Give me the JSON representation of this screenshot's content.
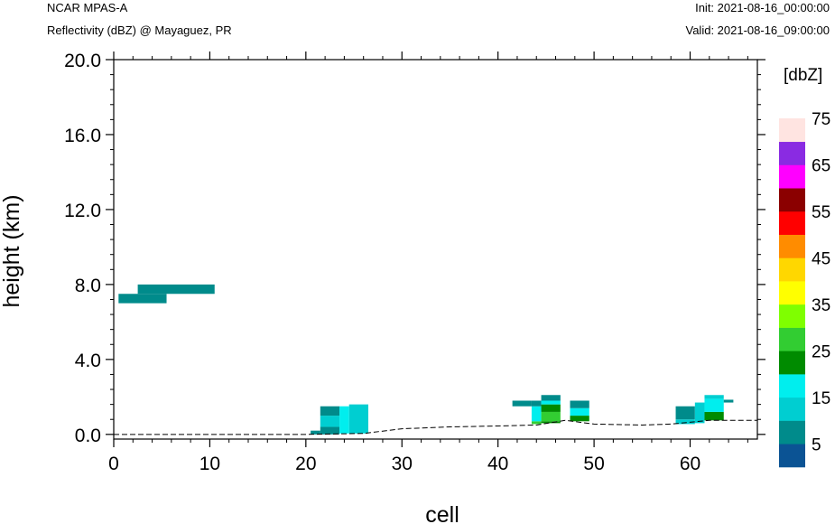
{
  "header": {
    "model": "NCAR MPAS-A",
    "subtitle": "Reflectivity (dBZ) @ Mayaguez, PR",
    "init": "Init: 2021-08-16_00:00:00",
    "valid": "Valid: 2021-08-16_09:00:00"
  },
  "chart_data": {
    "type": "heatmap",
    "title": "Reflectivity (dBZ) @ Mayaguez, PR",
    "xlabel": "cell",
    "ylabel": "height (km)",
    "xlim": [
      0,
      67
    ],
    "ylim": [
      -0.25,
      20.0
    ],
    "xticks": [
      0,
      10,
      20,
      30,
      40,
      50,
      60
    ],
    "xtick_labels": [
      "0",
      "10",
      "20",
      "30",
      "40",
      "50",
      "60"
    ],
    "yticks": [
      0.0,
      4.0,
      8.0,
      12.0,
      16.0,
      20.0
    ],
    "ytick_labels": [
      "0.0",
      "4.0",
      "8.0",
      "12.0",
      "16.0",
      "20.0"
    ],
    "colorbar": {
      "title": "[dbZ]",
      "levels": [
        0,
        5,
        10,
        15,
        20,
        25,
        30,
        35,
        40,
        45,
        50,
        55,
        60,
        65,
        70,
        75
      ],
      "labels": [
        "5",
        "15",
        "25",
        "35",
        "45",
        "55",
        "65",
        "75"
      ],
      "colors": [
        "#0b5394",
        "#008b8b",
        "#00ced1",
        "#00eeee",
        "#008b00",
        "#32cd32",
        "#7fff00",
        "#ffff00",
        "#ffd700",
        "#ff8c00",
        "#ff0000",
        "#8b0000",
        "#ff00ff",
        "#8a2be2",
        "#ffe4e1"
      ]
    },
    "terrain": [
      [
        0,
        0.0
      ],
      [
        20,
        0.0
      ],
      [
        26,
        0.05
      ],
      [
        30,
        0.3
      ],
      [
        35,
        0.4
      ],
      [
        40,
        0.45
      ],
      [
        44,
        0.5
      ],
      [
        47,
        0.75
      ],
      [
        50,
        0.55
      ],
      [
        55,
        0.5
      ],
      [
        58,
        0.55
      ],
      [
        62,
        0.75
      ],
      [
        67,
        0.75
      ]
    ],
    "cells": [
      {
        "x0": 0.5,
        "x1": 5.5,
        "y0": 7.0,
        "y1": 7.5,
        "dbz": 5
      },
      {
        "x0": 2.5,
        "x1": 10.5,
        "y0": 7.5,
        "y1": 8.0,
        "dbz": 5
      },
      {
        "x0": 20.5,
        "x1": 21.5,
        "y0": 0.0,
        "y1": 0.2,
        "dbz": 5
      },
      {
        "x0": 21.5,
        "x1": 23.5,
        "y0": 0.0,
        "y1": 0.4,
        "dbz": 5
      },
      {
        "x0": 21.5,
        "x1": 23.5,
        "y0": 0.4,
        "y1": 1.0,
        "dbz": 10
      },
      {
        "x0": 21.5,
        "x1": 23.5,
        "y0": 1.0,
        "y1": 1.5,
        "dbz": 5
      },
      {
        "x0": 23.5,
        "x1": 24.5,
        "y0": 0.05,
        "y1": 1.5,
        "dbz": 15
      },
      {
        "x0": 24.5,
        "x1": 26.5,
        "y0": 0.05,
        "y1": 1.6,
        "dbz": 10
      },
      {
        "x0": 41.5,
        "x1": 43.5,
        "y0": 1.5,
        "y1": 1.8,
        "dbz": 5
      },
      {
        "x0": 43.5,
        "x1": 44.5,
        "y0": 0.55,
        "y1": 0.7,
        "dbz": 25
      },
      {
        "x0": 43.5,
        "x1": 44.5,
        "y0": 0.7,
        "y1": 1.5,
        "dbz": 15
      },
      {
        "x0": 43.5,
        "x1": 44.5,
        "y0": 1.5,
        "y1": 1.8,
        "dbz": 5
      },
      {
        "x0": 44.5,
        "x1": 46.5,
        "y0": 0.6,
        "y1": 0.7,
        "dbz": 20
      },
      {
        "x0": 44.5,
        "x1": 46.5,
        "y0": 0.7,
        "y1": 1.2,
        "dbz": 25
      },
      {
        "x0": 44.5,
        "x1": 46.5,
        "y0": 1.2,
        "y1": 1.6,
        "dbz": 20
      },
      {
        "x0": 44.5,
        "x1": 46.5,
        "y0": 1.6,
        "y1": 1.8,
        "dbz": 15
      },
      {
        "x0": 44.5,
        "x1": 46.5,
        "y0": 1.8,
        "y1": 2.1,
        "dbz": 5
      },
      {
        "x0": 47.5,
        "x1": 49.5,
        "y0": 0.7,
        "y1": 1.0,
        "dbz": 20
      },
      {
        "x0": 47.5,
        "x1": 49.5,
        "y0": 1.0,
        "y1": 1.4,
        "dbz": 15
      },
      {
        "x0": 47.5,
        "x1": 49.5,
        "y0": 1.4,
        "y1": 1.8,
        "dbz": 5
      },
      {
        "x0": 58.5,
        "x1": 60.5,
        "y0": 0.55,
        "y1": 0.8,
        "dbz": 10
      },
      {
        "x0": 58.5,
        "x1": 60.5,
        "y0": 0.8,
        "y1": 1.5,
        "dbz": 5
      },
      {
        "x0": 60.5,
        "x1": 61.5,
        "y0": 0.6,
        "y1": 1.7,
        "dbz": 10
      },
      {
        "x0": 61.5,
        "x1": 63.5,
        "y0": 0.75,
        "y1": 1.2,
        "dbz": 20
      },
      {
        "x0": 61.5,
        "x1": 63.5,
        "y0": 1.2,
        "y1": 1.9,
        "dbz": 15
      },
      {
        "x0": 61.5,
        "x1": 63.5,
        "y0": 1.9,
        "y1": 2.1,
        "dbz": 10
      },
      {
        "x0": 63.5,
        "x1": 64.5,
        "y0": 1.7,
        "y1": 1.85,
        "dbz": 5
      }
    ]
  }
}
